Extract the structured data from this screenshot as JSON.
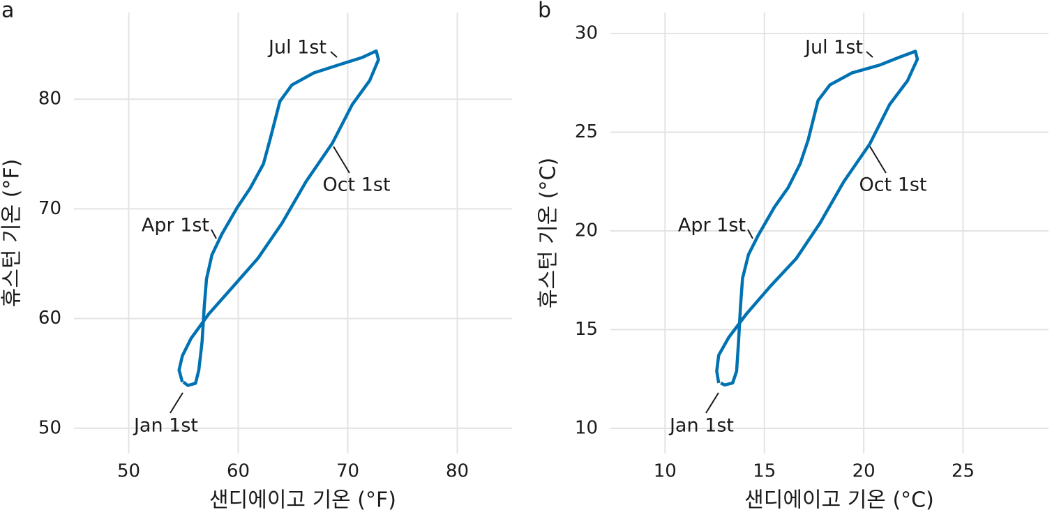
{
  "chart_data": [
    {
      "type": "line",
      "panel_label": "a",
      "xlabel": "샌디에이고 기온 (°F)",
      "ylabel": "휴스턴 기온 (°F)",
      "color": "#0072b2",
      "x": [
        55.0,
        55.4,
        56.1,
        56.4,
        56.7,
        56.9,
        57.1,
        57.6,
        58.5,
        59.9,
        61.1,
        62.3,
        62.9,
        63.8,
        64.9,
        66.9,
        69.4,
        71.3,
        72.6,
        72.8,
        72.0,
        70.4,
        68.6,
        66.2,
        64.0,
        61.8,
        59.6,
        57.3,
        55.7,
        54.9,
        54.6,
        54.9
      ],
      "values": [
        54.2,
        53.9,
        54.1,
        55.3,
        57.9,
        61.1,
        63.6,
        65.8,
        67.7,
        70.1,
        71.9,
        74.1,
        76.3,
        79.8,
        81.3,
        82.4,
        83.2,
        83.8,
        84.4,
        83.6,
        81.7,
        79.5,
        76.0,
        72.5,
        68.7,
        65.5,
        63.0,
        60.4,
        58.2,
        56.6,
        55.3,
        54.2
      ],
      "xlim": [
        45,
        85
      ],
      "ylim": [
        47.7,
        87.9
      ],
      "xticks": [
        50,
        60,
        70,
        80
      ],
      "yticks": [
        50,
        60,
        70,
        80
      ],
      "grid": true,
      "annotations": [
        "Jan 1st",
        "Apr 1st",
        "Jul 1st",
        "Oct 1st"
      ]
    },
    {
      "type": "line",
      "panel_label": "b",
      "xlabel": "샌디에이고 기온 (°C)",
      "ylabel": "휴스턴 기온 (°C)",
      "color": "#0072b2",
      "x": [
        12.8,
        13.0,
        13.4,
        13.6,
        13.7,
        13.8,
        13.9,
        14.2,
        14.7,
        15.5,
        16.2,
        16.8,
        17.2,
        17.7,
        18.3,
        19.4,
        20.8,
        21.8,
        22.6,
        22.7,
        22.2,
        21.3,
        20.3,
        19.0,
        17.8,
        16.6,
        15.3,
        14.1,
        13.2,
        12.7,
        12.6,
        12.7
      ],
      "values": [
        12.3,
        12.2,
        12.3,
        12.9,
        14.4,
        16.2,
        17.6,
        18.8,
        19.8,
        21.2,
        22.2,
        23.4,
        24.6,
        26.6,
        27.4,
        28.0,
        28.4,
        28.8,
        29.1,
        28.7,
        27.6,
        26.4,
        24.4,
        22.5,
        20.4,
        18.6,
        17.2,
        15.8,
        14.6,
        13.7,
        12.9,
        12.3
      ],
      "xlim": [
        7.25,
        29.3
      ],
      "ylim": [
        8.73,
        31.06
      ],
      "xticks": [
        10,
        15,
        20,
        25
      ],
      "yticks": [
        10,
        15,
        20,
        25,
        30
      ],
      "grid": true,
      "annotations": [
        "Jan 1st",
        "Apr 1st",
        "Jul 1st",
        "Oct 1st"
      ]
    }
  ]
}
